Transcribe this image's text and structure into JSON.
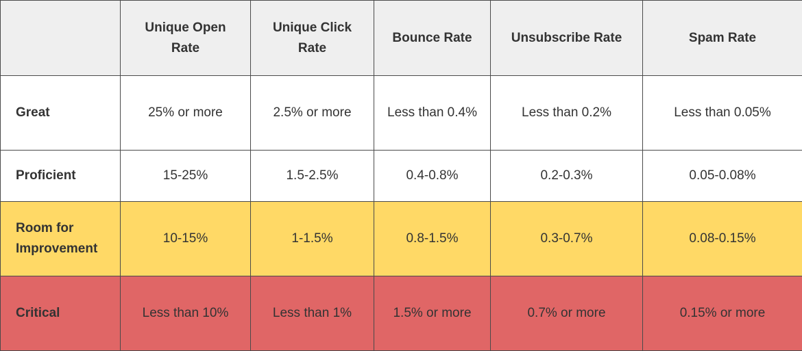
{
  "colors": {
    "header_bg": "#efefef",
    "great_bg": "#ffffff",
    "proficient_bg": "#ffffff",
    "room_bg": "#ffd966",
    "critical_bg": "#e06666",
    "border": "#4a4a4a",
    "text": "#333333"
  },
  "table": {
    "headers": [
      "",
      "Unique Open Rate",
      "Unique Click Rate",
      "Bounce Rate",
      "Unsubscribe Rate",
      "Spam Rate"
    ],
    "rows": [
      {
        "label": "Great",
        "cells": [
          "25% or more",
          "2.5% or more",
          "Less than 0.4%",
          "Less than 0.2%",
          "Less than 0.05%"
        ]
      },
      {
        "label": "Proficient",
        "cells": [
          "15-25%",
          "1.5-2.5%",
          "0.4-0.8%",
          "0.2-0.3%",
          "0.05-0.08%"
        ]
      },
      {
        "label": "Room for Improvement",
        "cells": [
          "10-15%",
          "1-1.5%",
          "0.8-1.5%",
          "0.3-0.7%",
          "0.08-0.15%"
        ]
      },
      {
        "label": "Critical",
        "cells": [
          "Less than 10%",
          "Less than 1%",
          "1.5% or more",
          "0.7% or more",
          "0.15% or more"
        ]
      }
    ]
  }
}
